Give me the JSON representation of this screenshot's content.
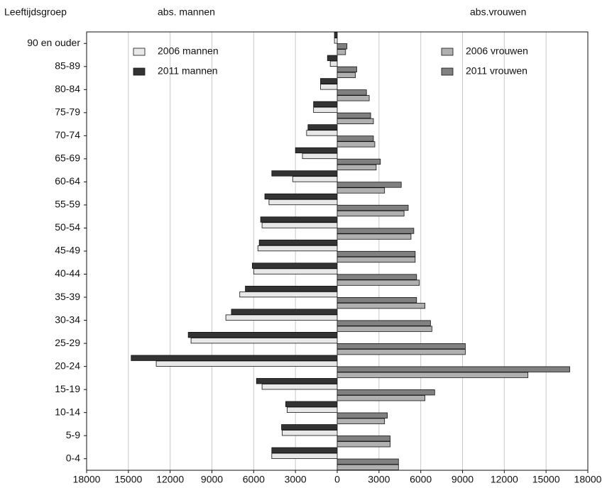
{
  "chart_data": {
    "type": "pyramid",
    "y_label": "Leeftijdsgroep",
    "left_label": "abs. mannen",
    "right_label": "abs.vrouwen",
    "categories": [
      "0-4",
      "5-9",
      "10-14",
      "15-19",
      "20-24",
      "25-29",
      "30-34",
      "35-39",
      "40-44",
      "45-49",
      "50-54",
      "55-59",
      "60-64",
      "65-69",
      "70-74",
      "75-79",
      "80-84",
      "85-89",
      "90 en ouder"
    ],
    "series": [
      {
        "name": "2006 mannen",
        "color": "#e8e8e8",
        "values": [
          -4700,
          -3950,
          -3600,
          -5400,
          -13000,
          -10500,
          -8000,
          -7000,
          -6000,
          -5700,
          -5400,
          -4900,
          -3200,
          -2500,
          -2200,
          -1700,
          -1200,
          -500,
          -200
        ]
      },
      {
        "name": "2011 mannen",
        "color": "#333333",
        "values": [
          -4700,
          -4000,
          -3700,
          -5800,
          -14800,
          -10700,
          -7600,
          -6600,
          -6100,
          -5600,
          -5500,
          -5200,
          -4700,
          -3000,
          -2100,
          -1700,
          -1200,
          -700,
          -200
        ]
      },
      {
        "name": "2006 vrouwen",
        "color": "#b0b0b0",
        "values": [
          4400,
          3800,
          3400,
          6300,
          13700,
          9200,
          6800,
          6300,
          5900,
          5600,
          5300,
          4800,
          3400,
          2800,
          2700,
          2600,
          2300,
          1300,
          600
        ]
      },
      {
        "name": "2011 vrouwen",
        "color": "#808080",
        "values": [
          4400,
          3800,
          3600,
          7000,
          16700,
          9200,
          6700,
          5700,
          5700,
          5600,
          5500,
          5100,
          4600,
          3100,
          2600,
          2400,
          2100,
          1400,
          700
        ]
      }
    ],
    "xlim": [
      -18000,
      18000
    ],
    "xticks": [
      {
        "value": -18000,
        "label": "18000"
      },
      {
        "value": -15000,
        "label": "15000"
      },
      {
        "value": -12000,
        "label": "12000"
      },
      {
        "value": -9000,
        "label": "9000"
      },
      {
        "value": -6000,
        "label": "6000"
      },
      {
        "value": -3000,
        "label": "3000"
      },
      0,
      3000,
      6000,
      9000,
      12000,
      15000,
      18000
    ],
    "grid": true
  }
}
